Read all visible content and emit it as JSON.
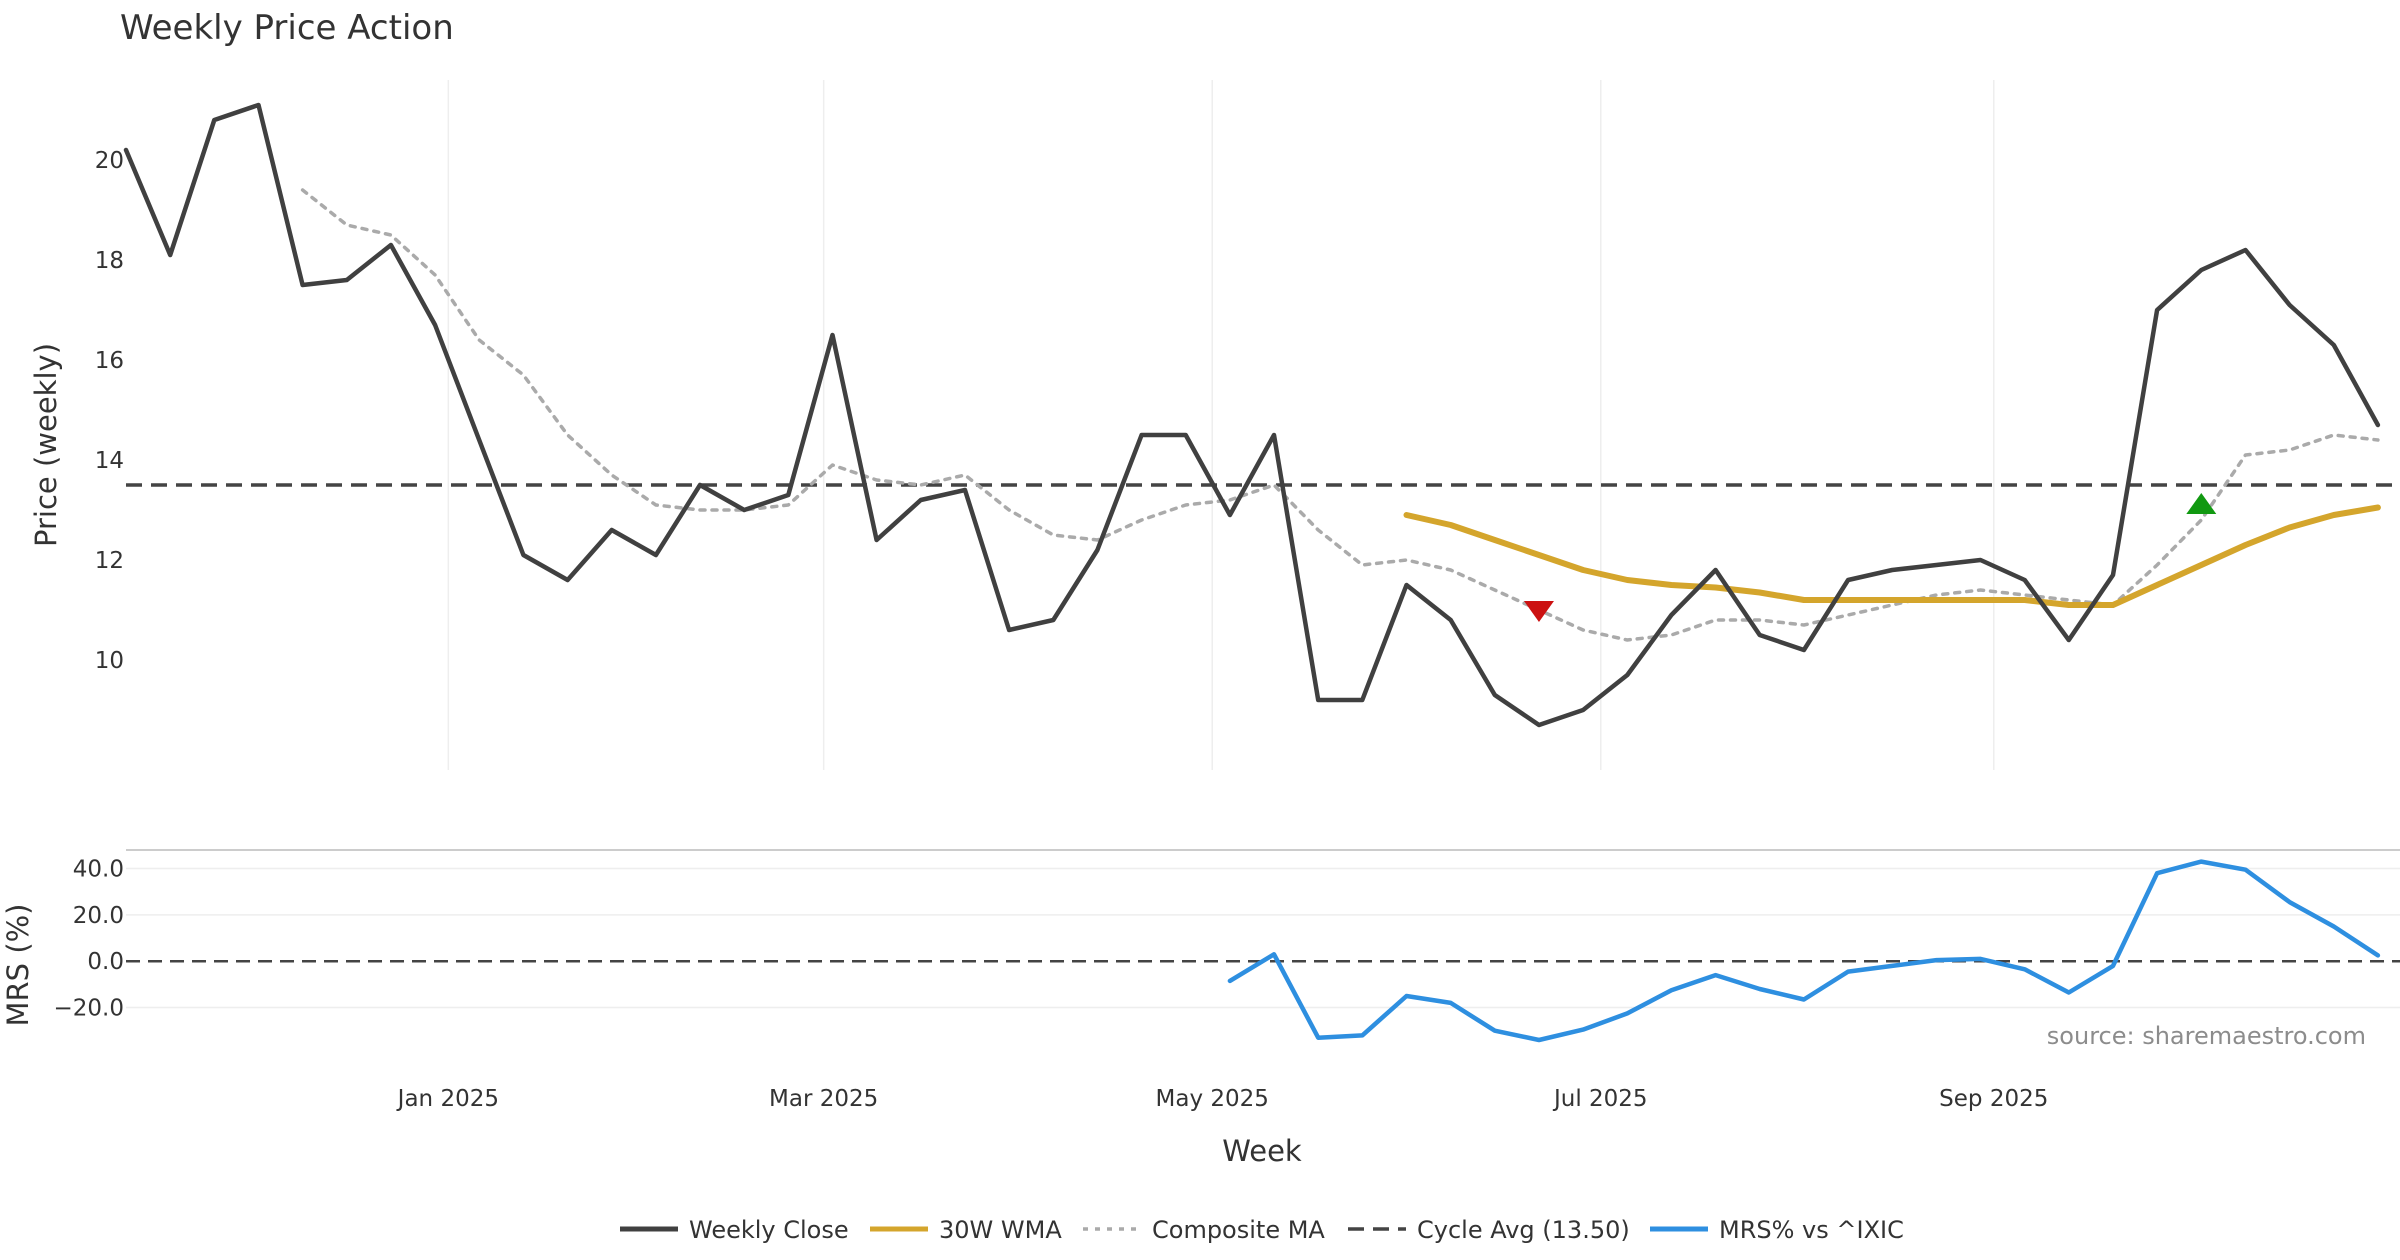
{
  "chart_data": [
    {
      "type": "line",
      "title": "Weekly Price Action",
      "xlabel": "",
      "ylabel": "Price (weekly)",
      "yticks": [
        "10",
        "12",
        "14",
        "16",
        "18",
        "20"
      ],
      "ylim": [
        7.8,
        21.6
      ],
      "xlim": [
        0,
        51.5
      ],
      "grid": true,
      "x_month_ticks": [
        {
          "label": "Jan 2025",
          "week": 7.3
        },
        {
          "label": "Mar 2025",
          "week": 15.8
        },
        {
          "label": "May 2025",
          "week": 24.6
        },
        {
          "label": "Jul 2025",
          "week": 33.4
        },
        {
          "label": "Sep 2025",
          "week": 42.3
        }
      ],
      "series": [
        {
          "name": "Weekly Close",
          "color": "#404040",
          "start": 0,
          "values": [
            20.2,
            18.1,
            20.8,
            21.1,
            17.5,
            17.6,
            18.3,
            16.7,
            14.4,
            12.1,
            11.6,
            12.6,
            12.1,
            13.5,
            13.0,
            13.3,
            16.5,
            12.4,
            13.2,
            13.4,
            10.6,
            10.8,
            12.2,
            14.5,
            14.5,
            12.9,
            14.5,
            9.2,
            9.2,
            11.5,
            10.8,
            9.3,
            8.7,
            9.0,
            9.7,
            10.9,
            11.8,
            10.5,
            10.2,
            11.6,
            11.8,
            11.9,
            12.0,
            11.6,
            10.4,
            11.7,
            17.0,
            17.8,
            18.2,
            17.1,
            16.3,
            14.7
          ]
        },
        {
          "name": "30W WMA",
          "color": "#d4a52c",
          "start": 29,
          "values": [
            12.9,
            12.7,
            12.4,
            12.1,
            11.8,
            11.6,
            11.5,
            11.45,
            11.35,
            11.2,
            11.2,
            11.2,
            11.2,
            11.2,
            11.2,
            11.1,
            11.1,
            11.5,
            11.9,
            12.3,
            12.65,
            12.9,
            13.05
          ]
        },
        {
          "name": "Composite MA",
          "color": "#aaaaaa",
          "start": 4,
          "values": [
            19.4,
            18.7,
            18.5,
            17.7,
            16.4,
            15.7,
            14.5,
            13.7,
            13.1,
            13.0,
            13.0,
            13.1,
            13.9,
            13.6,
            13.5,
            13.7,
            13.0,
            12.5,
            12.4,
            12.8,
            13.1,
            13.2,
            13.5,
            12.6,
            11.9,
            12.0,
            11.8,
            11.4,
            11.0,
            10.6,
            10.4,
            10.5,
            10.8,
            10.8,
            10.7,
            10.9,
            11.1,
            11.3,
            11.4,
            11.3,
            11.2,
            11.1,
            11.9,
            12.8,
            14.1,
            14.2,
            14.5,
            14.4
          ]
        },
        {
          "name": "Cycle Avg (13.50)",
          "color": "#444444",
          "constant": 13.5
        }
      ],
      "markers": [
        {
          "type": "sell",
          "shape": "triangle-down",
          "color": "#cc1111",
          "week": 32,
          "value": 11.0
        },
        {
          "type": "buy",
          "shape": "triangle-up",
          "color": "#119911",
          "week": 47,
          "value": 13.1
        }
      ]
    },
    {
      "type": "line",
      "title": "",
      "xlabel": "Week",
      "ylabel": "MRS (%)",
      "yticks": [
        "−20.0",
        "0.0",
        "20.0",
        "40.0"
      ],
      "ylim": [
        -34,
        48
      ],
      "series": [
        {
          "name": "MRS% vs ^IXIC",
          "color": "#2e8fe0",
          "start": 25,
          "values": [
            -8.5,
            3.0,
            -33.0,
            -32.0,
            -15.0,
            -18.0,
            -30.0,
            -34.0,
            -29.5,
            -22.5,
            -12.5,
            -6.0,
            -12.0,
            -16.5,
            -4.5,
            -2.0,
            0.5,
            1.0,
            -3.5,
            -13.5,
            -2.0,
            38.0,
            43.0,
            39.5,
            25.5,
            15.0,
            2.5
          ]
        }
      ],
      "zero_line": 0
    }
  ],
  "legend": [
    {
      "label": "Weekly Close",
      "style": "solid",
      "color": "#404040"
    },
    {
      "label": "30W WMA",
      "style": "solid",
      "color": "#d4a52c"
    },
    {
      "label": "Composite MA",
      "style": "dotted",
      "color": "#aaaaaa"
    },
    {
      "label": "Cycle Avg (13.50)",
      "style": "dashed",
      "color": "#444444"
    },
    {
      "label": "MRS% vs ^IXIC",
      "style": "solid",
      "color": "#2e8fe0"
    }
  ],
  "source": "source: sharemaestro.com"
}
